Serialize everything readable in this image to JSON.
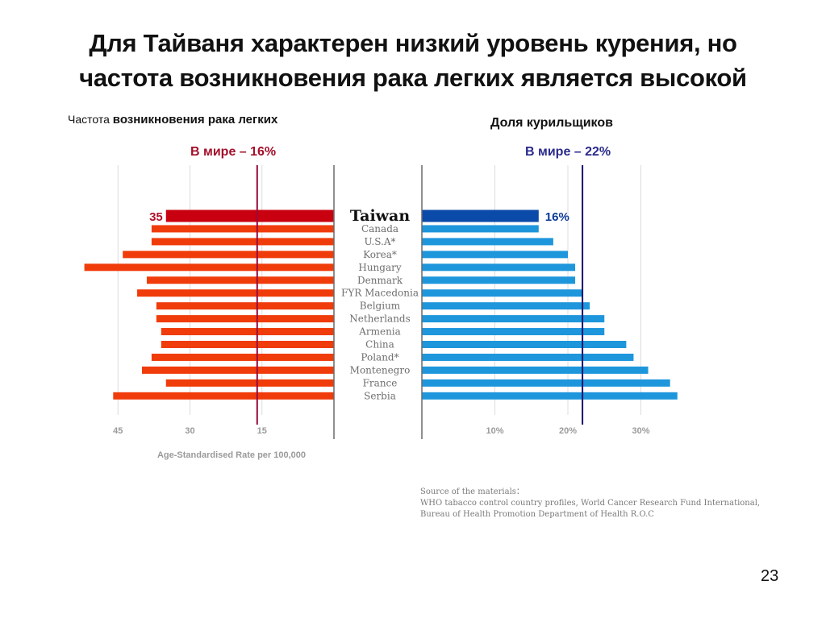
{
  "slide": {
    "title_lines": [
      "Для Тайваня характерен низкий уровень курения, но",
      "частота возникновения рака легких является высокой"
    ],
    "page_number": "23",
    "source": {
      "heading": "Source of the materials：",
      "lines": [
        "WHO tabacco control country profiles, World Cancer Research Fund International,",
        "Bureau of Health Promotion Department of Health R.O.C"
      ]
    }
  },
  "chart_data": [
    {
      "type": "bar",
      "orientation": "horizontal",
      "direction": "right-to-left",
      "title_prefix": "Частота",
      "title": "возникновения рака легких",
      "reference_label": "В мире – 16%",
      "reference_value": 16,
      "xlabel": "Age-Standardised Rate per 100,000",
      "xlim": [
        0,
        50
      ],
      "ticks": [
        45,
        30,
        15
      ],
      "tick_labels": [
        "45",
        "30",
        "15"
      ],
      "grid": true,
      "highlight_label": "35",
      "categories": [
        "Taiwan",
        "Canada",
        "U.S.A*",
        "Korea*",
        "Hungary",
        "Denmark",
        "FYR Macedonia",
        "Belgium",
        "Netherlands",
        "Armenia",
        "China",
        "Poland*",
        "Montenegro",
        "France",
        "Serbia"
      ],
      "values": [
        35,
        38,
        38,
        44,
        52,
        39,
        41,
        37,
        37,
        36,
        36,
        38,
        40,
        35,
        46
      ],
      "colors": {
        "highlight": "#c8000f",
        "bar": "#f03c0a",
        "reference": "#9a0a3c"
      }
    },
    {
      "type": "bar",
      "orientation": "horizontal",
      "direction": "left-to-right",
      "title": "Доля курильщиков",
      "reference_label": "В мире – 22%",
      "reference_value": 22,
      "xlabel": "",
      "xlim": [
        0,
        35
      ],
      "ticks": [
        10,
        20,
        30
      ],
      "tick_labels": [
        "10%",
        "20%",
        "30%"
      ],
      "grid": true,
      "highlight_label": "16%",
      "categories": [
        "Taiwan",
        "Canada",
        "U.S.A*",
        "Korea*",
        "Hungary",
        "Denmark",
        "FYR Macedonia",
        "Belgium",
        "Netherlands",
        "Armenia",
        "China",
        "Poland*",
        "Montenegro",
        "France",
        "Serbia"
      ],
      "values": [
        16,
        16,
        18,
        20,
        21,
        21,
        22,
        23,
        25,
        25,
        28,
        29,
        31,
        34,
        35
      ],
      "colors": {
        "highlight": "#0a4aa8",
        "bar": "#1e96dc",
        "reference": "#14146e"
      }
    }
  ]
}
